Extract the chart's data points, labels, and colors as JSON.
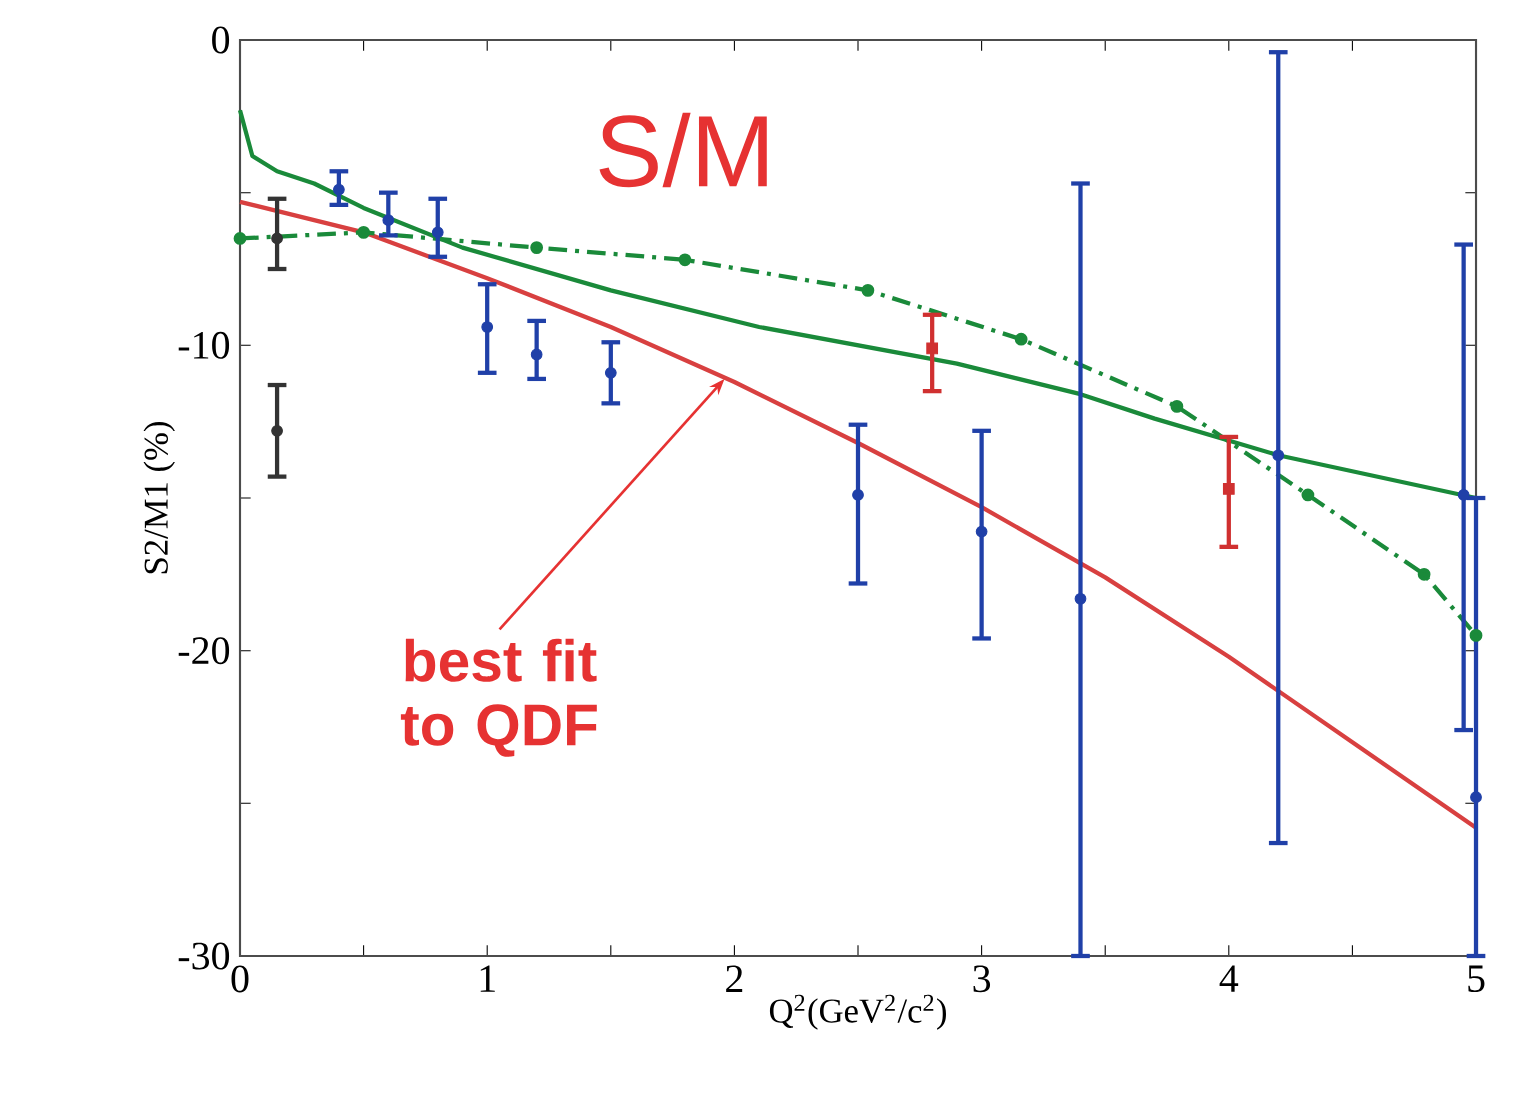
{
  "chart_data": {
    "type": "scatter",
    "xlabel": "Q$^{2}$(GeV$^{2}$/c$^{2}$)",
    "ylabel": "S2/M1 (%)",
    "xlim": [
      0,
      5
    ],
    "ylim": [
      -30,
      0
    ],
    "xticks": [
      0,
      {
        "value": 0.5,
        "label": null
      },
      1,
      {
        "value": 1.5,
        "label": null
      },
      2,
      {
        "value": 2.5,
        "label": null
      },
      3,
      {
        "value": 3.5,
        "label": null
      },
      4,
      {
        "value": 4.5,
        "label": null
      },
      5
    ],
    "yticks": [
      -30,
      {
        "value": -25,
        "label": null
      },
      -20,
      {
        "value": -15,
        "label": null
      },
      -10,
      {
        "value": -5,
        "label": null
      },
      0
    ],
    "series": [
      {
        "type": "line",
        "color": "#d84040",
        "line_style": "solid",
        "marker": "none",
        "x": [
          0,
          0.5,
          1,
          1.5,
          2,
          2.5,
          3,
          3.5,
          4,
          4.5,
          5
        ],
        "values": [
          -5.3,
          -6.3,
          -7.8,
          -9.4,
          -11.2,
          -13.2,
          -15.3,
          -17.6,
          -20.2,
          -23.0,
          -25.8
        ]
      },
      {
        "type": "line",
        "color": "#1a8a3a",
        "line_style": "solid",
        "marker": "none",
        "x": [
          0,
          0.05,
          0.15,
          0.3,
          0.5,
          0.9,
          1.5,
          2.1,
          2.9,
          3.4,
          3.7,
          4.2,
          5
        ],
        "values": [
          -2.3,
          -3.8,
          -4.3,
          -4.7,
          -5.5,
          -6.8,
          -8.2,
          -9.4,
          -10.6,
          -11.6,
          -12.4,
          -13.6,
          -15.0
        ]
      },
      {
        "type": "line",
        "color": "#1a8a3a",
        "line_style": "dashed",
        "marker": "circle",
        "x": [
          0,
          0.5,
          1.2,
          1.8,
          2.54,
          3.16,
          3.79,
          4.32,
          4.79,
          5
        ],
        "values": [
          -6.5,
          -6.3,
          -6.8,
          -7.2,
          -8.2,
          -9.8,
          -12.0,
          -14.9,
          -17.5,
          -19.5
        ]
      },
      {
        "color": "#2040a8",
        "marker": "circle",
        "x": [
          0.4,
          0.6,
          0.8,
          1.0,
          1.2,
          1.5,
          2.5,
          3.0,
          3.4,
          4.2,
          4.95,
          5.0
        ],
        "values": [
          -4.9,
          -5.9,
          -6.3,
          -9.4,
          -10.3,
          -10.9,
          -14.9,
          -16.1,
          -18.3,
          -13.6,
          -14.9,
          -24.8
        ],
        "errors": [
          [
            -5.4,
            -4.3
          ],
          [
            -6.4,
            -5.0
          ],
          [
            -7.1,
            -5.2
          ],
          [
            -10.9,
            -8.0
          ],
          [
            -11.1,
            -9.2
          ],
          [
            -11.9,
            -9.9
          ],
          [
            -17.8,
            -12.6
          ],
          [
            -19.6,
            -12.8
          ],
          [
            -30,
            -4.7
          ],
          [
            -26.3,
            -0.4
          ],
          [
            -22.6,
            -6.7
          ],
          [
            -30,
            -15
          ]
        ]
      },
      {
        "color": "#d03030",
        "marker": "square",
        "x": [
          2.8,
          4.0
        ],
        "values": [
          -10.1,
          -14.7
        ],
        "errors": [
          [
            -11.5,
            -9.0
          ],
          [
            -16.6,
            -13.0
          ]
        ]
      },
      {
        "color": "#333333",
        "marker": "circle",
        "x": [
          0.15,
          0.15
        ],
        "values": [
          -6.5,
          -12.8
        ],
        "errors": [
          [
            -7.5,
            -5.2
          ],
          [
            -14.3,
            -11.3
          ]
        ]
      }
    ],
    "annotations": [
      "S/M",
      {
        "text": "best fit to QDF",
        "x": 1.96,
        "y": -11.1
      }
    ]
  }
}
